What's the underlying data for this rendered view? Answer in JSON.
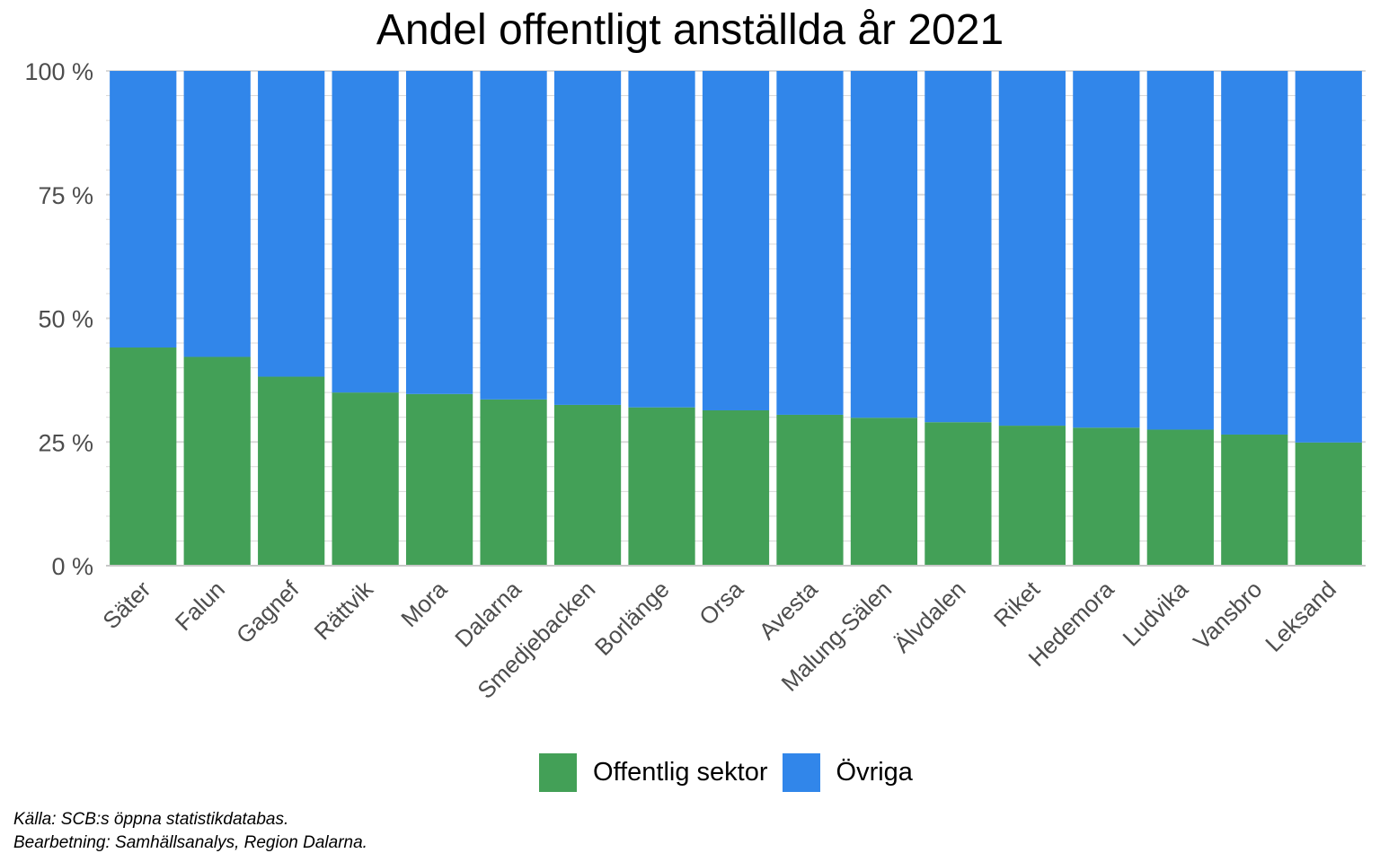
{
  "chart_data": {
    "type": "bar",
    "stacked": true,
    "title": "Andel offentligt anställda år 2021",
    "xlabel": "",
    "ylabel": "",
    "ylim": [
      0,
      100
    ],
    "yticks": [
      0,
      25,
      50,
      75,
      100
    ],
    "ytick_labels": [
      "0 %",
      "25 %",
      "50 %",
      "75 %",
      "100 %"
    ],
    "grid": true,
    "legend_position": "bottom",
    "categories": [
      "Säter",
      "Falun",
      "Gagnef",
      "Rättvik",
      "Mora",
      "Dalarna",
      "Smedjebacken",
      "Borlänge",
      "Orsa",
      "Avesta",
      "Malung-Sälen",
      "Älvdalen",
      "Riket",
      "Hedemora",
      "Ludvika",
      "Vansbro",
      "Leksand"
    ],
    "series": [
      {
        "name": "Offentlig sektor",
        "color": "#43a057",
        "values": [
          44.1,
          42.2,
          38.2,
          35.0,
          34.7,
          33.6,
          32.5,
          32.0,
          31.4,
          30.5,
          29.9,
          29.0,
          28.3,
          27.9,
          27.5,
          26.5,
          24.9
        ]
      },
      {
        "name": "Övriga",
        "color": "#3186ea",
        "values": [
          55.9,
          57.8,
          61.8,
          65.0,
          65.3,
          66.4,
          67.5,
          68.0,
          68.6,
          69.5,
          70.1,
          71.0,
          71.7,
          72.1,
          72.5,
          73.5,
          75.1
        ]
      }
    ],
    "caption": {
      "source": "Källa: SCB:s öppna statistikdatabas.",
      "processing": "Bearbetning: Samhällsanalys, Region Dalarna."
    }
  }
}
